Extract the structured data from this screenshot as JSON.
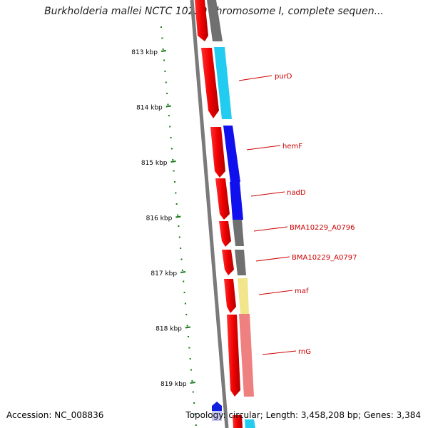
{
  "title": "Burkholderia mallei NCTC 10229 chromosome I, complete sequen...",
  "accession_label": "Accession: NC_008836",
  "summary": "Topology: circular; Length: 3,458,208 bp; Genes: 3,384",
  "ruler": {
    "tick_labels": [
      "813 kbp",
      "814 kbp",
      "815 kbp",
      "816 kbp",
      "817 kbp",
      "818 kbp",
      "819 kbp"
    ]
  },
  "genes": [
    {
      "label": "purD",
      "color": "#22ccf0"
    },
    {
      "label": "hemF",
      "color": "#1010ee"
    },
    {
      "label": "nadD",
      "color": "#1010ee"
    },
    {
      "label": "BMA10229_A0796",
      "color": "#707070"
    },
    {
      "label": "BMA10229_A0797",
      "color": "#707070"
    },
    {
      "label": "maf",
      "color": "#f2e68c"
    },
    {
      "label": "rnG",
      "color": "#ee8080"
    }
  ],
  "colors": {
    "title_text": "#222222",
    "gene_label": "#cc0000",
    "ruler_tick": "#1a7a1a",
    "backbone": "#7a7a7a",
    "frame_arrow": "#ee0000",
    "marker": "#1020dd"
  }
}
